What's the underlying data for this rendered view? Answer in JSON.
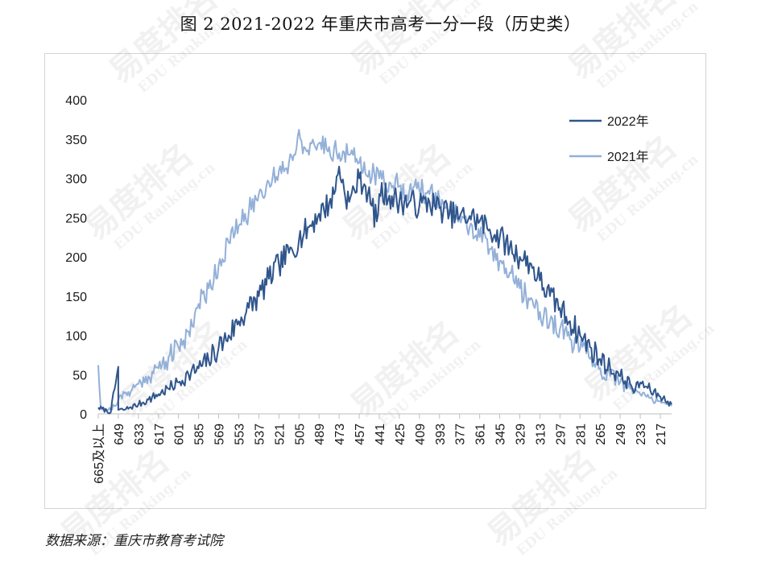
{
  "title": "图 2 2021-2022 年重庆市高考一分一段（历史类）",
  "source": "数据来源：重庆市教育考试院",
  "watermark": {
    "main": "易度排名",
    "sub": "EDU Ranking.cn"
  },
  "colors": {
    "series_2022": "#2f558c",
    "series_2021": "#93b0d8",
    "axis": "#bfbfbf"
  },
  "chart_data": {
    "type": "line",
    "title": "",
    "xlabel": "",
    "ylabel": "",
    "ylim": [
      0,
      400
    ],
    "yticks": [
      0,
      50,
      100,
      150,
      200,
      250,
      300,
      350,
      400
    ],
    "grid": false,
    "legend_position": "top-right",
    "x_range": [
      665,
      208
    ],
    "x_tick_labels": [
      "665及以上",
      "649",
      "633",
      "617",
      "601",
      "585",
      "569",
      "553",
      "537",
      "521",
      "505",
      "489",
      "473",
      "457",
      "441",
      "425",
      "409",
      "393",
      "377",
      "361",
      "345",
      "329",
      "313",
      "297",
      "281",
      "265",
      "249",
      "233",
      "217"
    ],
    "series": [
      {
        "name": "2022年",
        "color": "#2f558c",
        "points": [
          [
            665,
            8
          ],
          [
            655,
            2
          ],
          [
            649,
            60
          ],
          [
            649,
            5
          ],
          [
            645,
            5
          ],
          [
            640,
            8
          ],
          [
            633,
            12
          ],
          [
            625,
            18
          ],
          [
            617,
            25
          ],
          [
            609,
            32
          ],
          [
            601,
            40
          ],
          [
            593,
            50
          ],
          [
            585,
            58
          ],
          [
            577,
            68
          ],
          [
            569,
            85
          ],
          [
            561,
            100
          ],
          [
            553,
            118
          ],
          [
            545,
            135
          ],
          [
            537,
            150
          ],
          [
            529,
            172
          ],
          [
            521,
            190
          ],
          [
            513,
            205
          ],
          [
            505,
            222
          ],
          [
            497,
            238
          ],
          [
            489,
            255
          ],
          [
            481,
            268
          ],
          [
            477,
            280
          ],
          [
            473,
            315
          ],
          [
            469,
            285
          ],
          [
            465,
            270
          ],
          [
            457,
            300
          ],
          [
            452,
            290
          ],
          [
            447,
            265
          ],
          [
            443,
            245
          ],
          [
            441,
            280
          ],
          [
            433,
            278
          ],
          [
            425,
            270
          ],
          [
            417,
            270
          ],
          [
            409,
            265
          ],
          [
            401,
            270
          ],
          [
            393,
            262
          ],
          [
            385,
            255
          ],
          [
            377,
            250
          ],
          [
            369,
            252
          ],
          [
            361,
            245
          ],
          [
            353,
            235
          ],
          [
            345,
            225
          ],
          [
            337,
            212
          ],
          [
            329,
            200
          ],
          [
            321,
            192
          ],
          [
            313,
            170
          ],
          [
            305,
            150
          ],
          [
            297,
            135
          ],
          [
            289,
            118
          ],
          [
            281,
            100
          ],
          [
            273,
            85
          ],
          [
            265,
            70
          ],
          [
            257,
            58
          ],
          [
            249,
            48
          ],
          [
            241,
            38
          ],
          [
            237,
            30
          ],
          [
            233,
            40
          ],
          [
            225,
            30
          ],
          [
            217,
            22
          ],
          [
            211,
            16
          ],
          [
            208,
            12
          ]
        ]
      },
      {
        "name": "2021年",
        "color": "#93b0d8",
        "points": [
          [
            665,
            62
          ],
          [
            663,
            8
          ],
          [
            655,
            5
          ],
          [
            649,
            18
          ],
          [
            641,
            28
          ],
          [
            633,
            38
          ],
          [
            625,
            48
          ],
          [
            617,
            58
          ],
          [
            609,
            72
          ],
          [
            601,
            85
          ],
          [
            593,
            105
          ],
          [
            585,
            140
          ],
          [
            577,
            160
          ],
          [
            569,
            190
          ],
          [
            561,
            218
          ],
          [
            553,
            240
          ],
          [
            545,
            258
          ],
          [
            537,
            280
          ],
          [
            529,
            295
          ],
          [
            521,
            310
          ],
          [
            513,
            320
          ],
          [
            509,
            330
          ],
          [
            505,
            362
          ],
          [
            501,
            340
          ],
          [
            497,
            330
          ],
          [
            489,
            345
          ],
          [
            481,
            340
          ],
          [
            473,
            332
          ],
          [
            465,
            330
          ],
          [
            457,
            320
          ],
          [
            449,
            310
          ],
          [
            441,
            300
          ],
          [
            433,
            295
          ],
          [
            425,
            290
          ],
          [
            417,
            285
          ],
          [
            409,
            285
          ],
          [
            401,
            280
          ],
          [
            393,
            272
          ],
          [
            385,
            260
          ],
          [
            377,
            250
          ],
          [
            369,
            238
          ],
          [
            361,
            225
          ],
          [
            353,
            210
          ],
          [
            345,
            195
          ],
          [
            337,
            180
          ],
          [
            329,
            160
          ],
          [
            321,
            145
          ],
          [
            313,
            130
          ],
          [
            305,
            118
          ],
          [
            297,
            108
          ],
          [
            289,
            95
          ],
          [
            281,
            82
          ],
          [
            273,
            70
          ],
          [
            265,
            58
          ],
          [
            257,
            48
          ],
          [
            249,
            40
          ],
          [
            241,
            32
          ],
          [
            233,
            25
          ],
          [
            225,
            20
          ],
          [
            217,
            16
          ],
          [
            211,
            12
          ],
          [
            208,
            10
          ]
        ]
      }
    ]
  }
}
